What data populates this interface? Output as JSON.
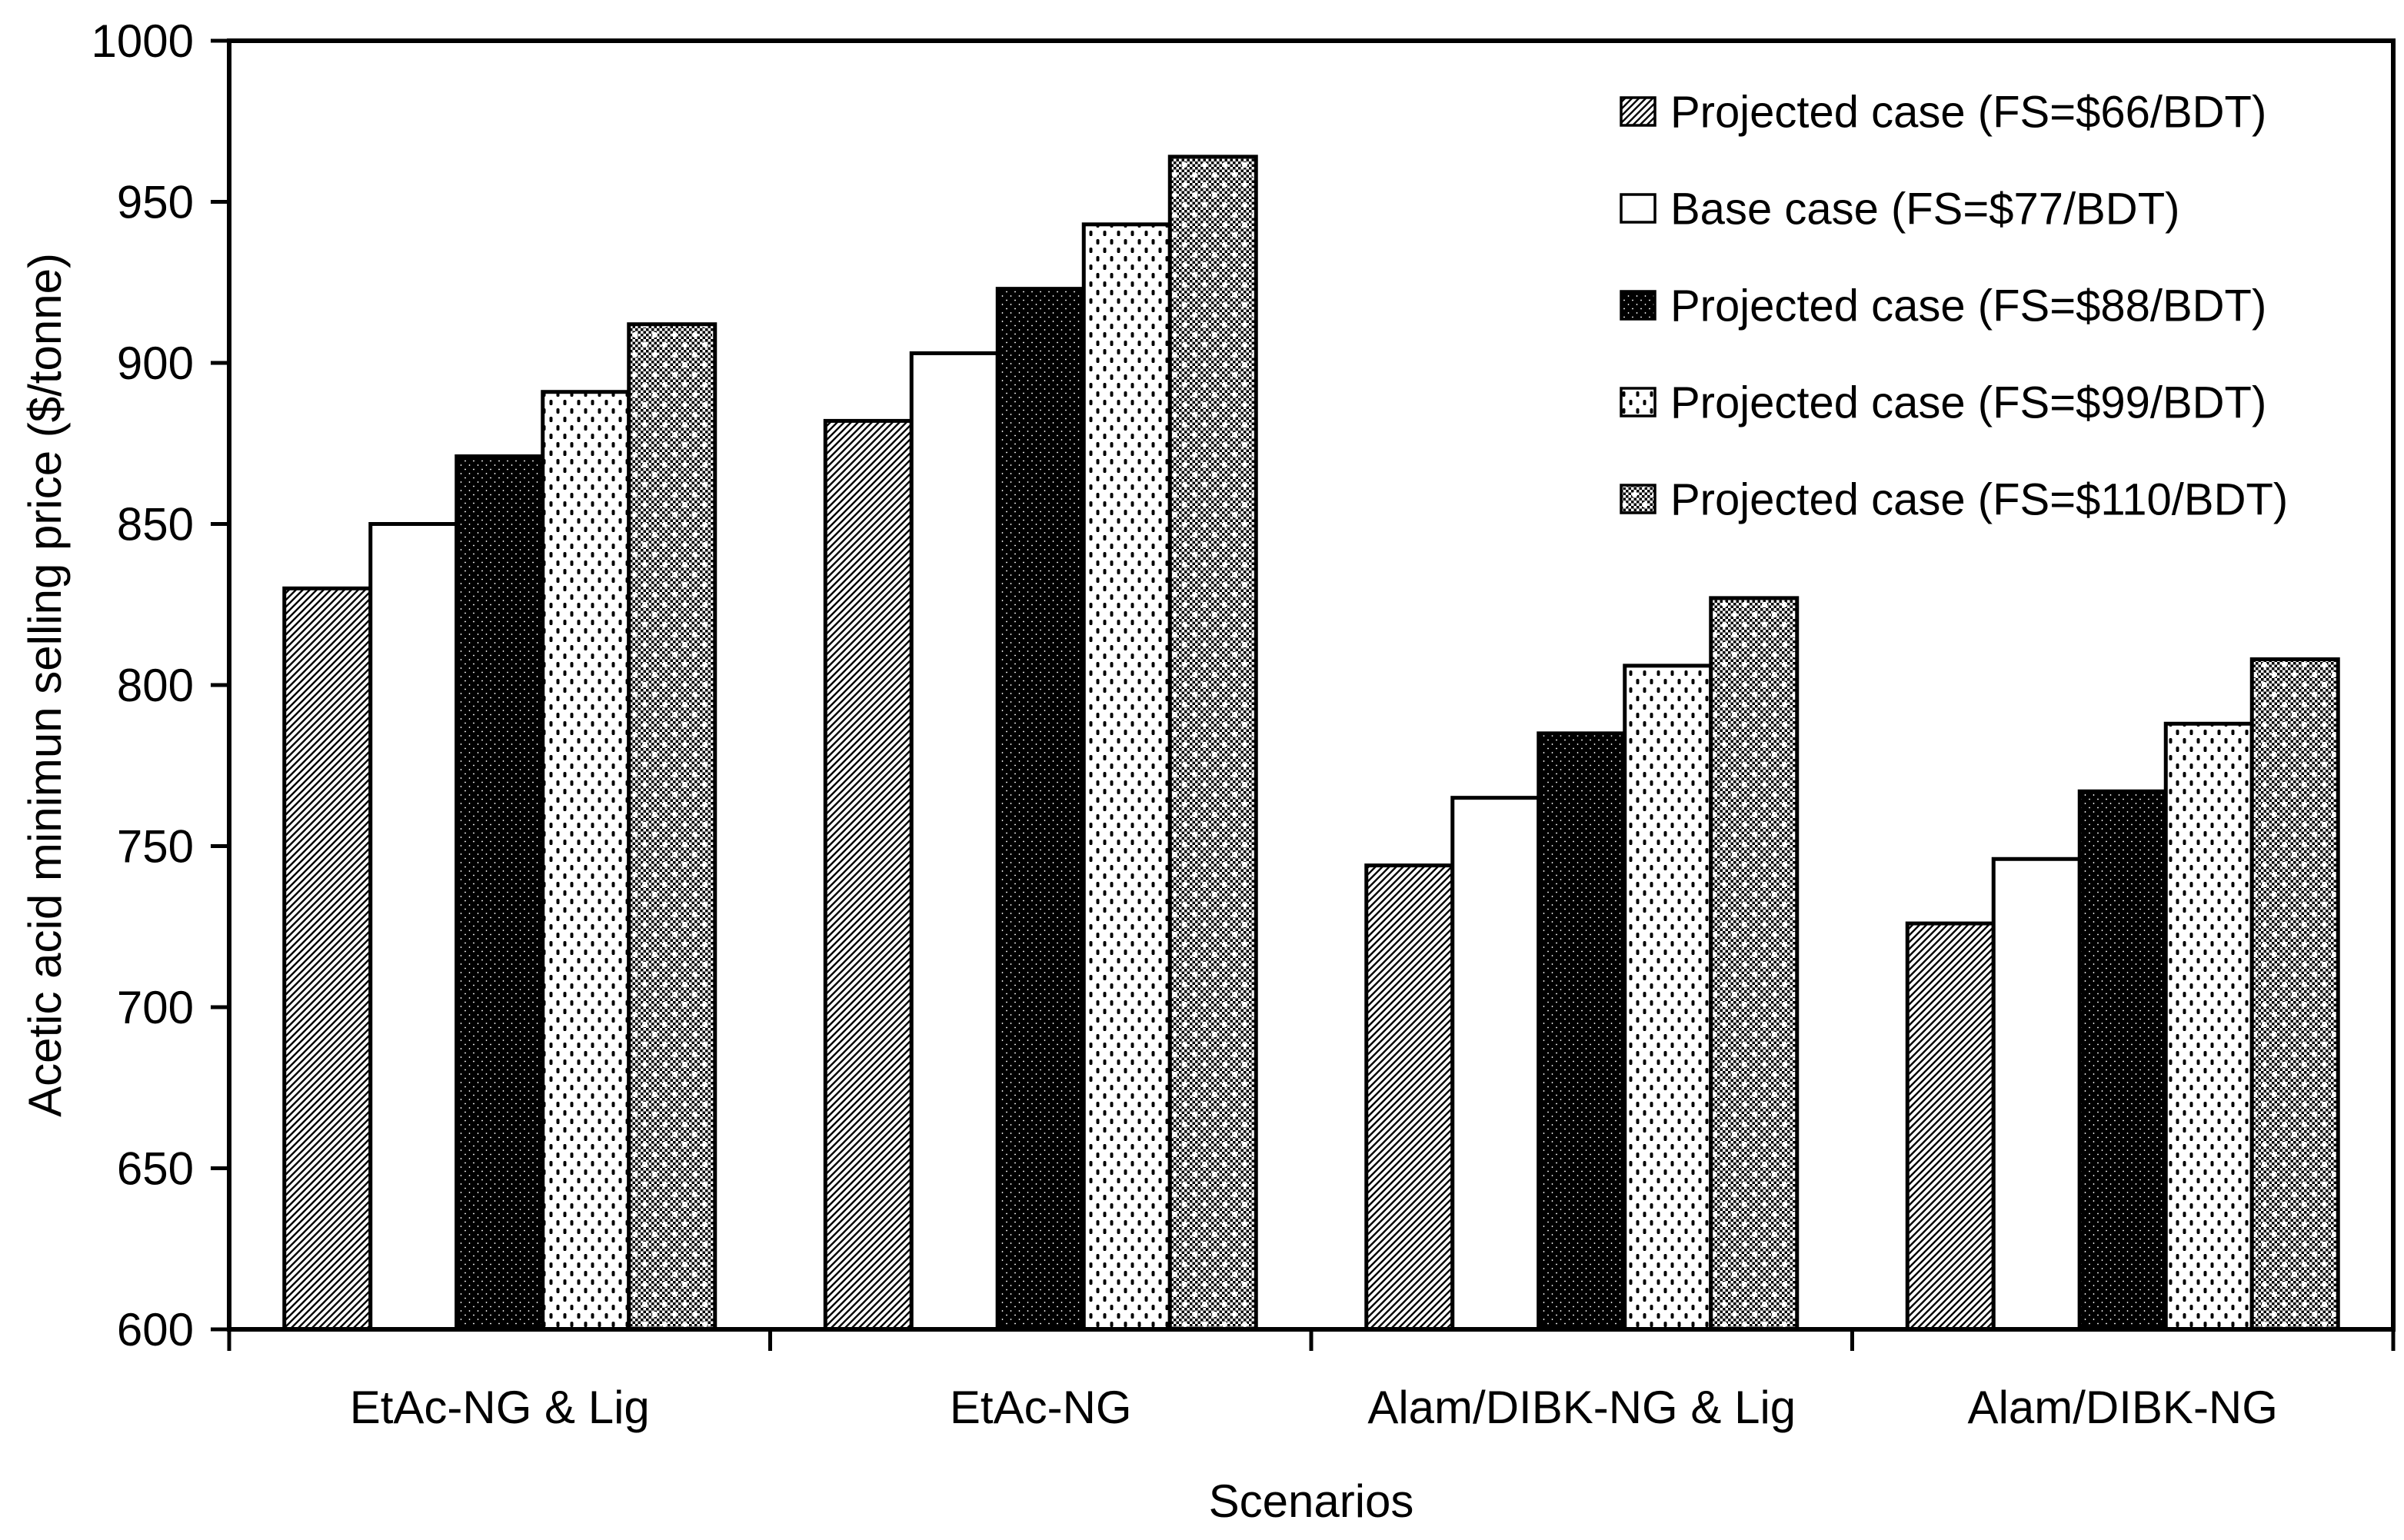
{
  "chart_data": {
    "type": "bar",
    "title": "",
    "xlabel": "Scenarios",
    "ylabel": "Acetic acid minimun selling price ($/tonne)",
    "ylim": [
      600,
      1000
    ],
    "ytick_step": 50,
    "yticks": [
      600,
      650,
      700,
      750,
      800,
      850,
      900,
      950,
      1000
    ],
    "grid": false,
    "legend_position": "top-right",
    "background_color": "#ffffff",
    "ink_color": "#000000",
    "categories": [
      "EtAc-NG & Lig",
      "EtAc-NG",
      "Alam/DIBK-NG & Lig",
      "Alam/DIBK-NG"
    ],
    "series": [
      {
        "name": "Projected case (FS=$66/BDT)",
        "pattern": "light-upward-diagonal",
        "values": [
          830,
          882,
          744,
          726
        ]
      },
      {
        "name": "Base case (FS=$77/BDT)",
        "pattern": "solid-white",
        "values": [
          850,
          903,
          765,
          746
        ]
      },
      {
        "name": "Projected case (FS=$88/BDT)",
        "pattern": "dark-trellis",
        "values": [
          871,
          923,
          785,
          767
        ]
      },
      {
        "name": "Projected case (FS=$99/BDT)",
        "pattern": "light-dots",
        "values": [
          891,
          943,
          806,
          788
        ]
      },
      {
        "name": "Projected case (FS=$110/BDT)",
        "pattern": "gray-weave-dots",
        "values": [
          912,
          964,
          827,
          808
        ]
      }
    ]
  }
}
